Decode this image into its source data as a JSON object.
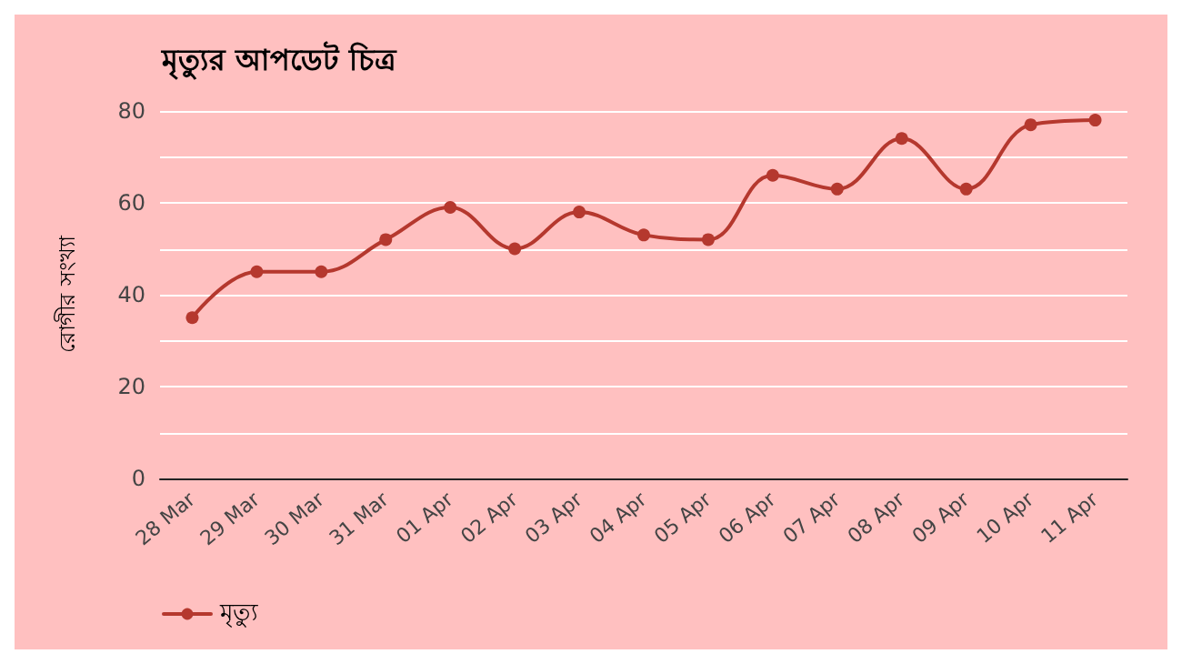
{
  "chart_data": {
    "type": "line",
    "title": "মৃত্যুর আপডেট চিত্র",
    "ylabel": "রোগীর সংখ্যা",
    "categories": [
      "28 Mar",
      "29 Mar",
      "30 Mar",
      "31 Mar",
      "01 Apr",
      "02 Apr",
      "03 Apr",
      "04 Apr",
      "05 Apr",
      "06 Apr",
      "07 Apr",
      "08 Apr",
      "09 Apr",
      "10 Apr",
      "11 Apr"
    ],
    "series": [
      {
        "name": "মৃত্যু",
        "color": "#b5382e",
        "values": [
          35,
          45,
          45,
          52,
          59,
          50,
          58,
          53,
          52,
          66,
          63,
          74,
          63,
          77,
          78
        ]
      }
    ],
    "ylim": [
      0,
      80
    ],
    "yticks": [
      0,
      {
        "value": 10,
        "label": null
      },
      20,
      {
        "value": 30,
        "label": null
      },
      40,
      {
        "value": 50,
        "label": null
      },
      60,
      {
        "value": 70,
        "label": null
      },
      80
    ],
    "grid": "y",
    "legend": "bottom left",
    "marker": "circle",
    "line_style": "solid"
  }
}
